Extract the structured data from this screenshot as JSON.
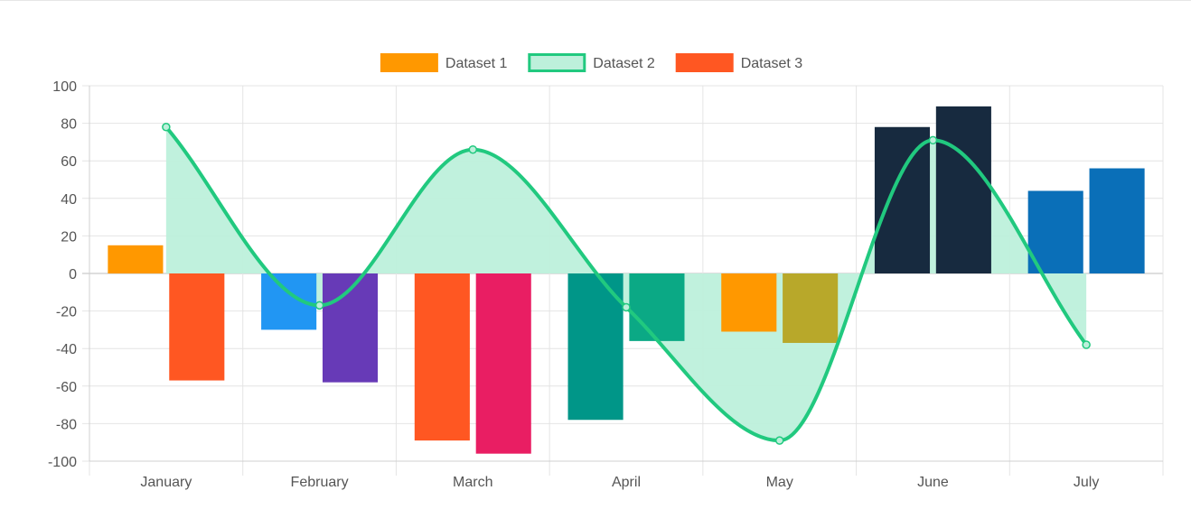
{
  "chart_data": {
    "type": "bar",
    "categories": [
      "January",
      "February",
      "March",
      "April",
      "May",
      "June",
      "July"
    ],
    "ylim": [
      -100,
      100
    ],
    "yticks": [
      100,
      80,
      60,
      40,
      20,
      0,
      -20,
      -40,
      -60,
      -80,
      -100
    ],
    "grid": true,
    "legend_position": "top-center",
    "series": [
      {
        "name": "Dataset 1",
        "type": "bar",
        "legend_color": "#FF9800",
        "values": [
          15,
          -30,
          -89,
          -78,
          -31,
          78,
          44
        ],
        "colors": [
          "#FF9800",
          "#2196F3",
          "#FF5722",
          "#009688",
          "#FF9800",
          "#172A3F",
          "#0A6FB8"
        ]
      },
      {
        "name": "Dataset 2",
        "type": "line",
        "smooth": true,
        "filled": true,
        "line_color": "#21C97F",
        "fill_color": "#BDF0DB",
        "values": [
          78,
          -17,
          66,
          -18,
          -89,
          71,
          -38
        ]
      },
      {
        "name": "Dataset 3",
        "type": "bar",
        "legend_color": "#FF5722",
        "values": [
          -57,
          -58,
          -96,
          -36,
          -37,
          89,
          56
        ],
        "colors": [
          "#FF5722",
          "#673AB7",
          "#E91E63",
          "#0BA985",
          "#B8A82A",
          "#172A3F",
          "#0A6FB8"
        ]
      }
    ]
  }
}
